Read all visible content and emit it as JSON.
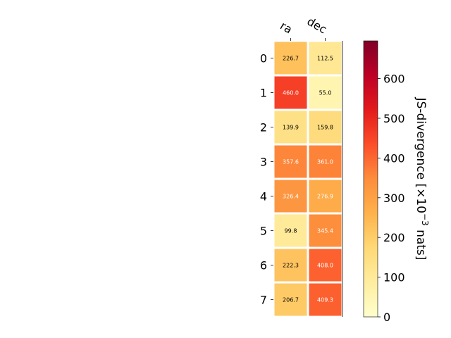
{
  "chart_data": {
    "type": "heatmap",
    "title": "",
    "xlabel": "",
    "ylabel": "",
    "columns": [
      "ra",
      "dec"
    ],
    "rows": [
      "0",
      "1",
      "2",
      "3",
      "4",
      "5",
      "6",
      "7"
    ],
    "values": [
      [
        226.7,
        112.5
      ],
      [
        460.0,
        55.0
      ],
      [
        139.9,
        159.8
      ],
      [
        357.6,
        361.0
      ],
      [
        326.4,
        276.9
      ],
      [
        99.8,
        345.4
      ],
      [
        222.3,
        408.0
      ],
      [
        206.7,
        409.3
      ]
    ],
    "value_labels": [
      [
        "226.7",
        "112.5"
      ],
      [
        "460.0",
        "55.0"
      ],
      [
        "139.9",
        "159.8"
      ],
      [
        "357.6",
        "361.0"
      ],
      [
        "326.4",
        "276.9"
      ],
      [
        "99.8",
        "345.4"
      ],
      [
        "222.3",
        "408.0"
      ],
      [
        "206.7",
        "409.3"
      ]
    ],
    "colorbar": {
      "label_main": "JS-divergence [×10",
      "label_exp": "−3",
      "label_tail": " nats]",
      "range": [
        0,
        695
      ],
      "ticks": [
        0,
        100,
        200,
        300,
        400,
        500,
        600
      ],
      "tick_labels": [
        "0",
        "100",
        "200",
        "300",
        "400",
        "500",
        "600"
      ],
      "colormap": "YlOrRd"
    },
    "grid": false
  }
}
